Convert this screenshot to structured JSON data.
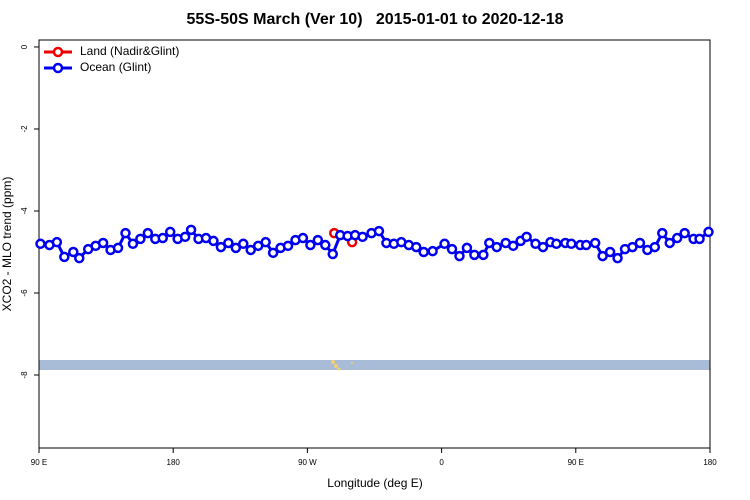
{
  "chart_data": {
    "type": "line",
    "title": "55S-50S March (Ver 10)   2015-01-01 to 2020-12-18",
    "xlabel": "Longitude (deg E)",
    "ylabel": "XCO2 - MLO trend (ppm)",
    "xlim": [
      90,
      540
    ],
    "ylim": [
      -9.78,
      0.17
    ],
    "xticks": [
      {
        "value": 90,
        "label": "90 E"
      },
      180,
      {
        "value": 270,
        "label": "90 W"
      },
      {
        "value": 360,
        "label": "0"
      },
      {
        "value": 450,
        "label": "90 E"
      },
      {
        "value": 540,
        "label": "180"
      }
    ],
    "yticks": [
      0,
      -2,
      -4,
      -6,
      -8
    ],
    "legend": "top-left",
    "series": [
      {
        "name": "Land (Nadir&Glint)",
        "color": "#ee0000",
        "x": [
          288,
          300
        ],
        "values": [
          -4.54,
          -4.76
        ]
      },
      {
        "name": "Ocean (Glint)",
        "color": "#0000ee",
        "x": [
          91,
          97,
          102,
          107,
          113,
          117,
          123,
          128,
          133,
          138,
          143,
          148,
          153,
          158,
          163,
          168,
          173,
          178,
          183,
          188,
          192,
          197,
          202,
          207,
          212,
          217,
          222,
          227,
          232,
          237,
          242,
          247,
          252,
          257,
          262,
          267,
          272,
          277,
          282,
          287,
          292,
          297,
          302,
          307,
          313,
          318,
          323,
          328,
          333,
          338,
          343,
          348,
          354,
          362,
          367,
          372,
          377,
          382,
          388,
          392,
          397,
          403,
          408,
          413,
          417,
          423,
          428,
          433,
          437,
          443,
          447,
          453,
          457,
          463,
          468,
          473,
          478,
          483,
          488,
          493,
          498,
          503,
          508,
          513,
          518,
          523,
          529,
          533,
          539
        ],
        "values": [
          -4.8,
          -4.83,
          -4.76,
          -5.12,
          -5.0,
          -5.15,
          -4.93,
          -4.85,
          -4.78,
          -4.95,
          -4.9,
          -4.54,
          -4.8,
          -4.68,
          -4.54,
          -4.68,
          -4.66,
          -4.51,
          -4.68,
          -4.63,
          -4.46,
          -4.68,
          -4.66,
          -4.73,
          -4.88,
          -4.78,
          -4.9,
          -4.8,
          -4.95,
          -4.85,
          -4.76,
          -5.02,
          -4.9,
          -4.85,
          -4.71,
          -4.66,
          -4.83,
          -4.71,
          -4.83,
          -5.05,
          -4.59,
          -4.61,
          -4.59,
          -4.63,
          -4.54,
          -4.49,
          -4.78,
          -4.8,
          -4.76,
          -4.83,
          -4.88,
          -5.0,
          -4.98,
          -4.8,
          -4.93,
          -5.1,
          -4.9,
          -5.07,
          -5.07,
          -4.78,
          -4.88,
          -4.78,
          -4.85,
          -4.73,
          -4.63,
          -4.8,
          -4.88,
          -4.76,
          -4.8,
          -4.78,
          -4.8,
          -4.83,
          -4.83,
          -4.78,
          -5.1,
          -5.0,
          -5.15,
          -4.93,
          -4.88,
          -4.78,
          -4.95,
          -4.88,
          -4.54,
          -4.78,
          -4.66,
          -4.54,
          -4.68,
          -4.68,
          -4.51
        ]
      }
    ]
  }
}
